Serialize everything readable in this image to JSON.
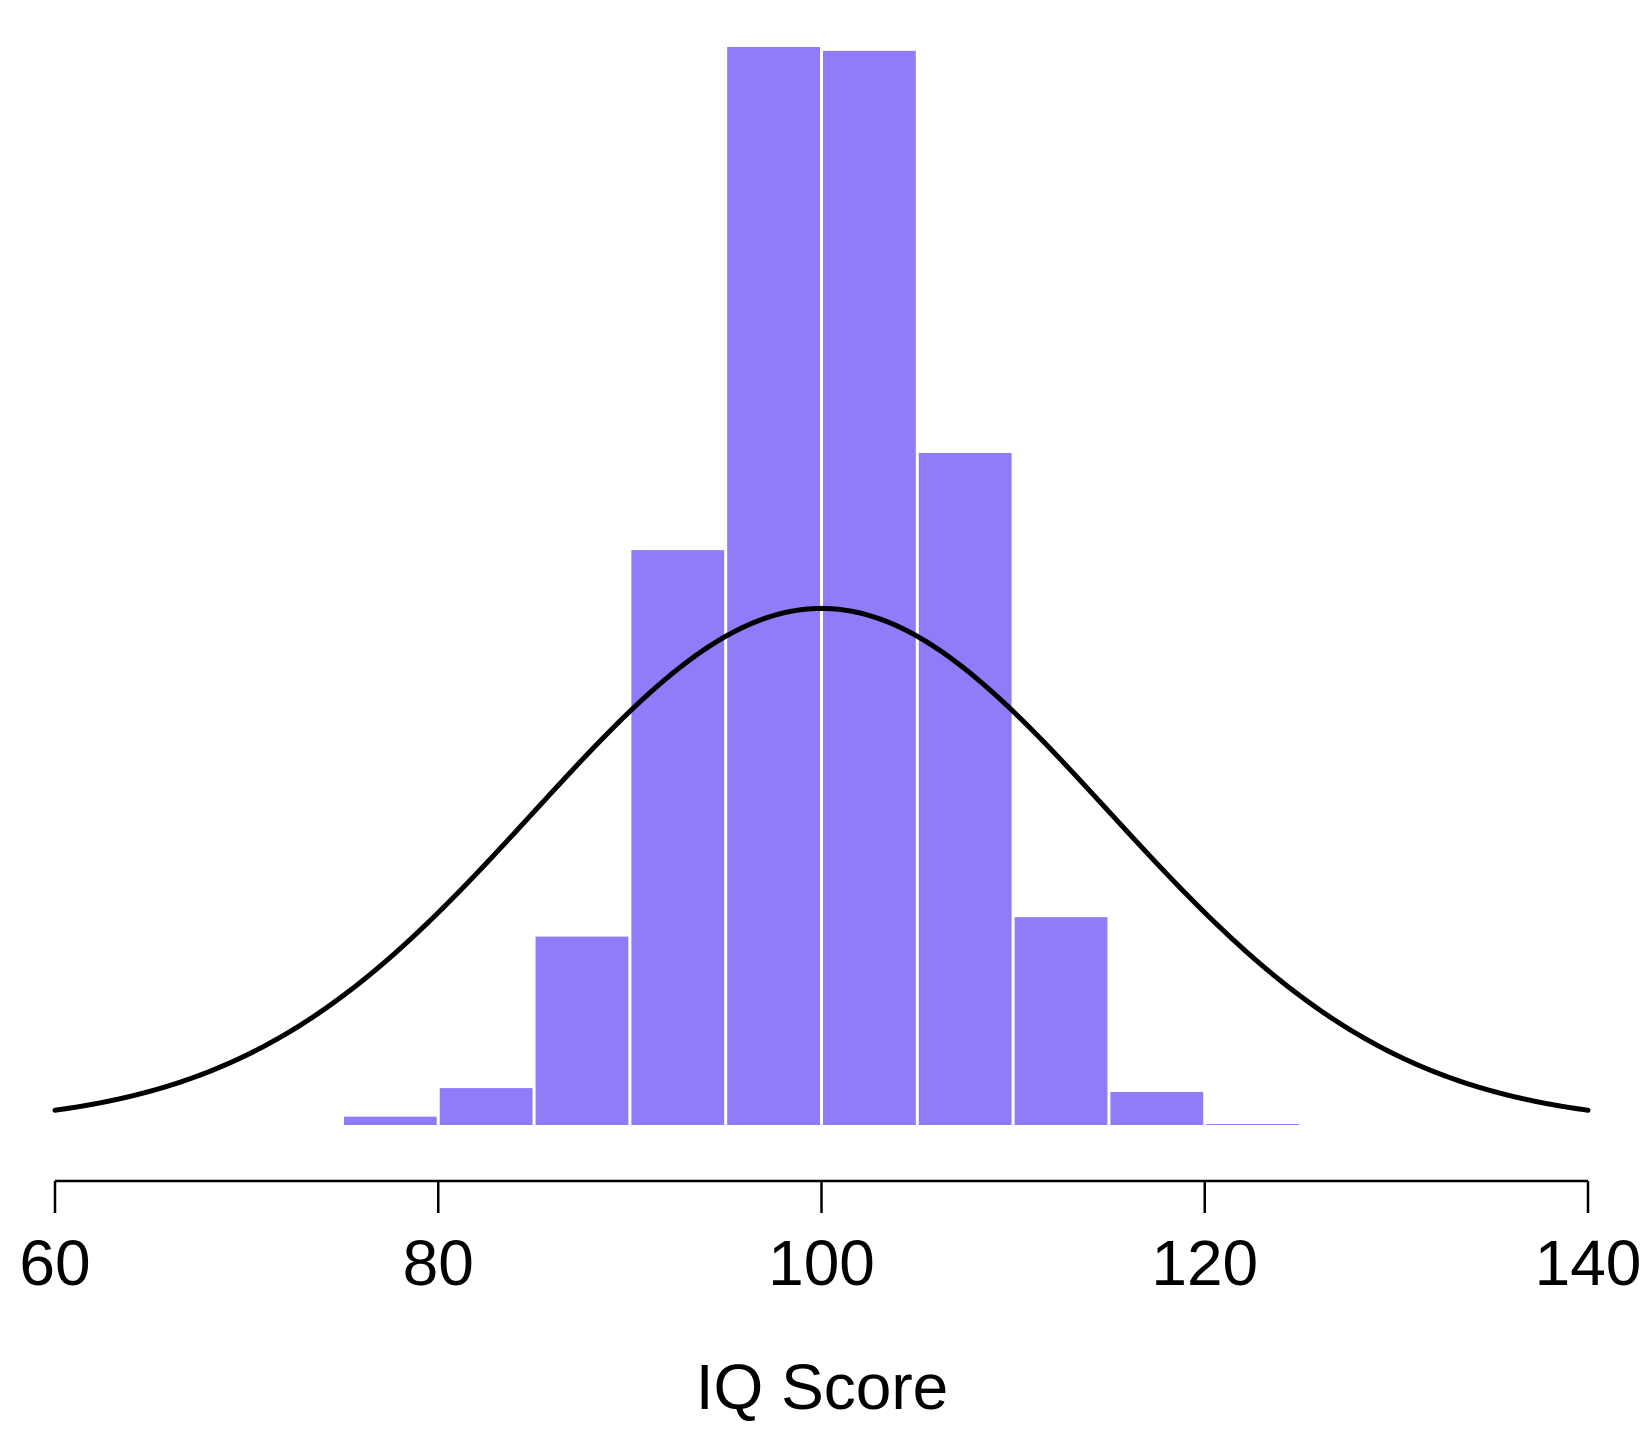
{
  "chart_data": {
    "type": "histogram",
    "x_label": "IQ Score",
    "bins": [
      75,
      80,
      85,
      90,
      95,
      100,
      105,
      110,
      115,
      120,
      125
    ],
    "values": [
      0.00043,
      0.0019,
      0.0097,
      0.0296,
      0.0555,
      0.0553,
      0.0346,
      0.0107,
      0.0017,
      5e-05
    ],
    "color": "#8f7cf9",
    "density_curve": {
      "mean": 100,
      "sd": 15,
      "color": "#000000"
    },
    "xlim": [
      60,
      140
    ],
    "xticks": [
      60,
      80,
      100,
      120,
      140
    ],
    "ylim": [
      0,
      0.0555
    ]
  }
}
